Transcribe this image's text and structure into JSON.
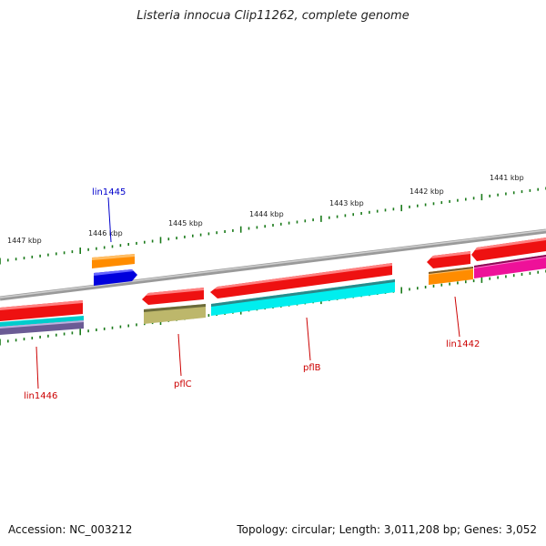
{
  "title": "Listeria innocua Clip11262, complete genome",
  "footer": {
    "accession": "Accession: NC_003212",
    "stats": "Topology: circular; Length: 3,011,208 bp; Genes: 3,052"
  },
  "scale_labels": [
    "1447 kbp",
    "1446 kbp",
    "1445 kbp",
    "1444 kbp",
    "1443 kbp",
    "1442 kbp",
    "1441 kbp"
  ],
  "gene_labels": {
    "lin1445": "lin1445",
    "lin1446": "lin1446",
    "pflC": "pflC",
    "pflB": "pflB",
    "lin1442": "lin1442"
  },
  "colors": {
    "backbone": "#8a8a8a",
    "tick": "#1a7a1a",
    "label_red": "#cc0000",
    "label_blue": "#0000cc",
    "red": "#ee1111",
    "orange": "#ff8800",
    "blue": "#0000dd",
    "cyan": "#00e5e5",
    "olive": "#bdb76b",
    "magenta": "#ee1199",
    "purple": "#6b5b95"
  }
}
